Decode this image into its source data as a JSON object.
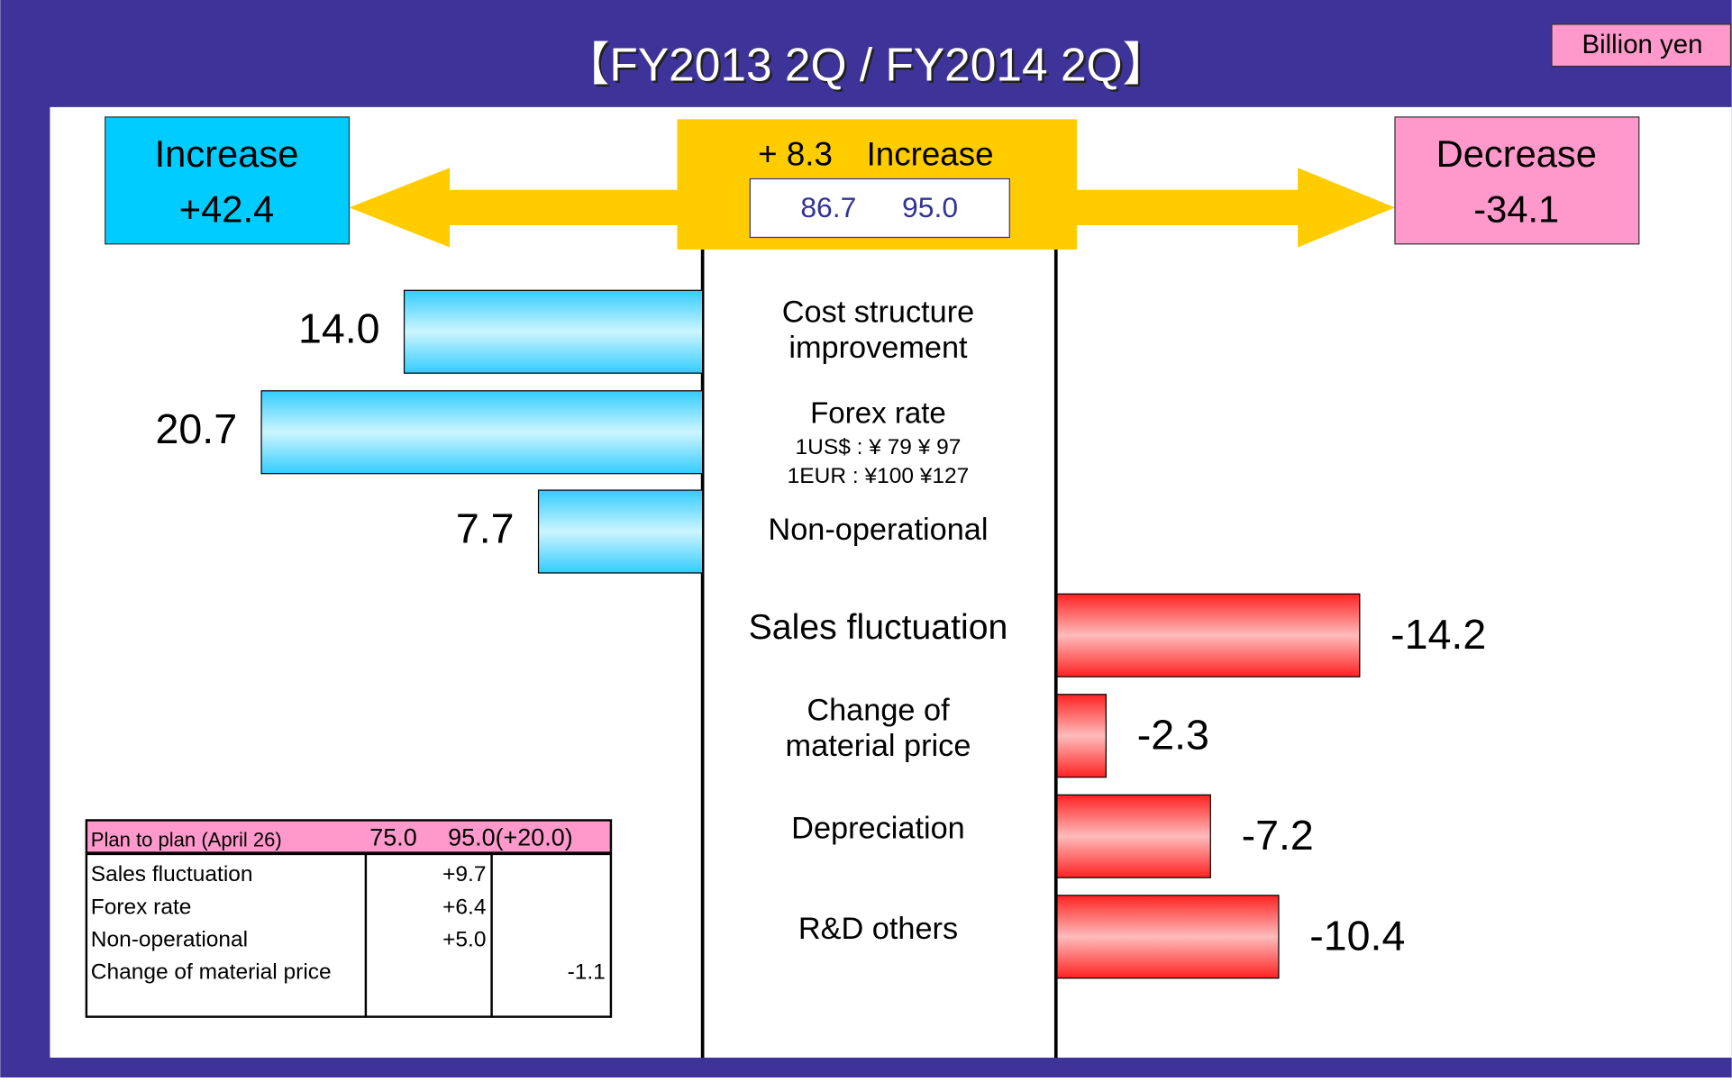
{
  "chart_data": {
    "type": "diverging_bar",
    "title": "【FY2013 2Q / FY2014 2Q】",
    "unit": "Billion yen",
    "increase": {
      "label": "Increase",
      "value_label": "+42.4"
    },
    "decrease": {
      "label": "Decrease",
      "value_label": "-34.1"
    },
    "net": {
      "value_label": "+ 8.3",
      "label": "Increase",
      "from_label": "86.7",
      "to_label": "95.0"
    },
    "increase_items": {
      "categories": [
        [
          "Cost structure",
          "improvement"
        ],
        [
          "Forex rate"
        ],
        [
          "Non-operational"
        ]
      ],
      "notes": [
        [],
        [
          "1US$ : ¥ 79 ¥ 97",
          "1EUR : ¥100 ¥127"
        ],
        []
      ],
      "values": [
        14,
        20.7,
        7.7
      ],
      "value_labels": [
        "14.0",
        "20.7",
        "7.7"
      ],
      "color": "#33ccff"
    },
    "decrease_items": {
      "categories": [
        [
          "Sales fluctuation"
        ],
        [
          "Change of",
          "material price"
        ],
        [
          "Depreciation"
        ],
        [
          "R&D others"
        ]
      ],
      "values": [
        -14.2,
        -2.3,
        -7.2,
        -10.4
      ],
      "color": "#ff3333"
    },
    "table": {
      "header": [
        "Plan to plan (April 26)",
        "75.0",
        "95.0(+20.0)"
      ],
      "rows": [
        {
          "label": "Sales fluctuation",
          "plus": "+9.7"
        },
        {
          "label": "Forex rate",
          "plus": "+6.4"
        },
        {
          "label": "Non-operational",
          "plus": "+5.0"
        },
        {
          "label": "Change of material price",
          "minus": "-1.1"
        }
      ]
    }
  }
}
